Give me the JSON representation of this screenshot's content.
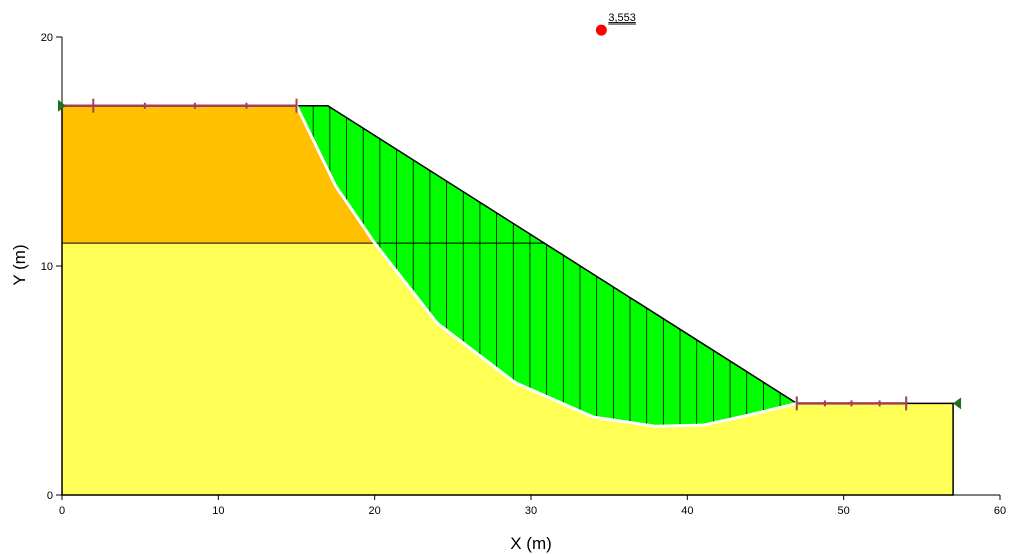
{
  "chart_data": {
    "type": "slope-stability-section",
    "xlabel": "X (m)",
    "ylabel": "Y (m)",
    "xlim": [
      0,
      60
    ],
    "ylim": [
      0,
      20
    ],
    "x_ticks": [
      0,
      10,
      20,
      30,
      40,
      50,
      60
    ],
    "y_ticks": [
      0,
      10,
      20
    ],
    "colors": {
      "upper_layer": "#FFC000",
      "lower_layer": "#FFFF55",
      "sliding_mass": "#00FF00",
      "slip_surface": "#FFFFFF",
      "boundary": "#000000",
      "piezometric_line": "#A0405A",
      "fos_center": "#FF0000",
      "limit_marker": "#207020"
    },
    "ground_profile": [
      [
        0,
        17
      ],
      [
        17,
        17
      ],
      [
        47,
        4
      ],
      [
        57,
        4
      ],
      [
        57,
        0
      ],
      [
        0,
        0
      ]
    ],
    "layer_interface": [
      [
        0,
        11
      ],
      [
        20,
        11
      ]
    ],
    "slip_surface": [
      [
        15,
        17
      ],
      [
        17.5,
        13.5
      ],
      [
        20,
        11
      ],
      [
        24,
        7.5
      ],
      [
        29,
        4.9
      ],
      [
        34,
        3.4
      ],
      [
        38,
        3
      ],
      [
        41,
        3.05
      ],
      [
        44,
        3.5
      ],
      [
        47,
        4
      ]
    ],
    "num_slices": 30,
    "critical_center": {
      "x": 34.5,
      "y": 20.3,
      "fos": "3,553"
    },
    "piezometric_lines": [
      {
        "from": [
          0,
          17
        ],
        "to": [
          15,
          17
        ],
        "ticks_x": [
          2,
          5.3,
          8.5,
          11.8,
          15
        ]
      },
      {
        "from": [
          47,
          4
        ],
        "to": [
          54,
          4
        ],
        "ticks_x": [
          47,
          48.8,
          50.5,
          52.3,
          54
        ]
      }
    ],
    "limit_markers": [
      {
        "x": 0,
        "y": 17,
        "side": "left"
      },
      {
        "x": 57,
        "y": 4,
        "side": "right"
      }
    ]
  }
}
